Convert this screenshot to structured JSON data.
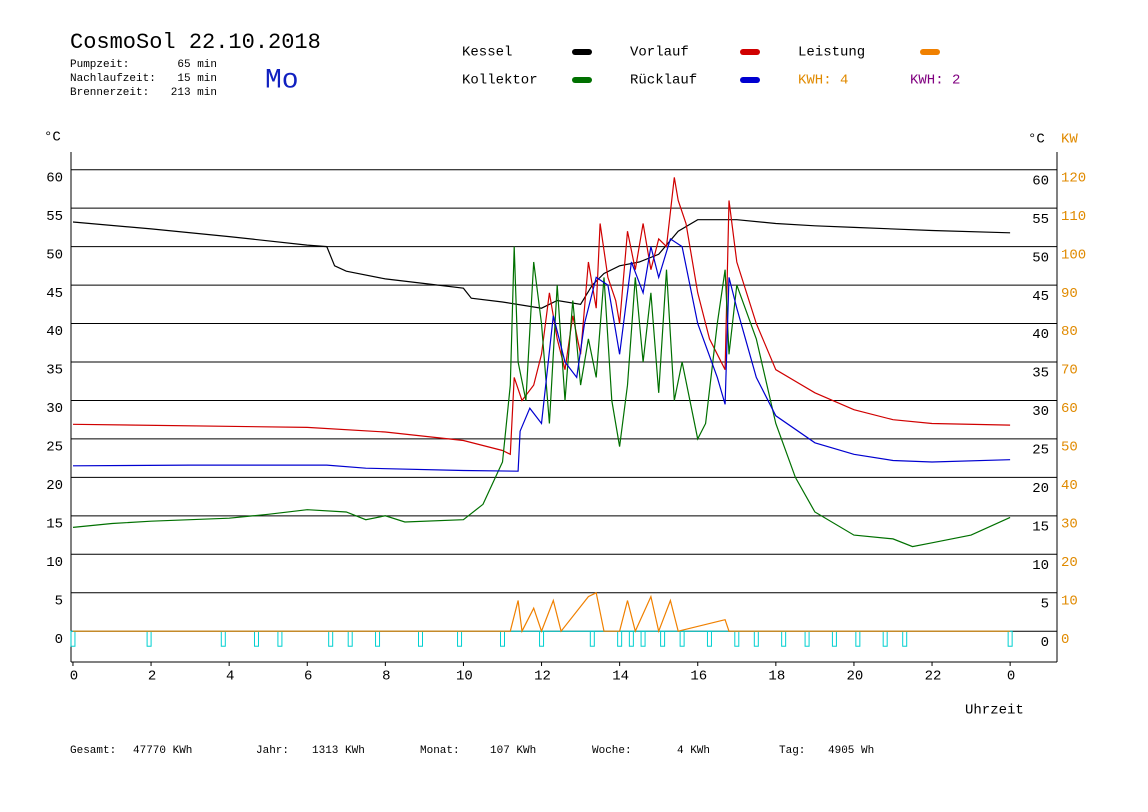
{
  "header": {
    "title": "CosmoSol 22.10.2018",
    "day": "Mo",
    "stats": [
      {
        "label": "Pumpzeit:",
        "value": "65 min"
      },
      {
        "label": "Nachlaufzeit:",
        "value": "15 min"
      },
      {
        "label": "Brennerzeit:",
        "value": "213 min"
      }
    ]
  },
  "chart_data": {
    "type": "line",
    "y_label": "°C",
    "y2_label_left": "°C",
    "y2_label": "KW",
    "x_label": "Uhrzeit",
    "xlim": [
      -0.05,
      25.2
    ],
    "xticks": [
      0,
      2,
      4,
      6,
      8,
      10,
      12,
      14,
      16,
      18,
      20,
      22,
      {
        "value": 24,
        "label": "0"
      }
    ],
    "ylim": [
      -4,
      62.3
    ],
    "yticks": [
      0,
      5,
      10,
      15,
      20,
      25,
      30,
      35,
      40,
      45,
      50,
      55,
      60
    ],
    "y2lim": [
      -8,
      124.6
    ],
    "y2ticks": [
      0,
      10,
      20,
      30,
      40,
      50,
      60,
      70,
      80,
      90,
      100,
      110,
      120
    ],
    "y2color": "#e08a00",
    "grid": true,
    "series": [
      {
        "name": "Kessel",
        "color": "#000000",
        "x": [
          0,
          2,
          4,
          6,
          6.5,
          6.7,
          7,
          8,
          9,
          10,
          10.2,
          11,
          12,
          12.4,
          13,
          13.3,
          13.6,
          14,
          14.5,
          15,
          15.5,
          16,
          17,
          18,
          19,
          20,
          22,
          24
        ],
        "values": [
          53.2,
          52.3,
          51.3,
          50.2,
          50,
          47.5,
          46.8,
          45.8,
          45.2,
          44.6,
          43.3,
          42.8,
          42,
          43,
          42.5,
          45,
          46.5,
          47.5,
          48,
          49,
          52,
          53.5,
          53.5,
          53,
          52.7,
          52.5,
          52.1,
          51.8
        ]
      },
      {
        "name": "Kollektor",
        "color": "#007000",
        "x": [
          0,
          1,
          2,
          4,
          5,
          6,
          7,
          7.5,
          8,
          8.5,
          10,
          10.5,
          11,
          11.2,
          11.3,
          11.4,
          11.6,
          11.8,
          12,
          12.2,
          12.4,
          12.6,
          12.8,
          13,
          13.2,
          13.4,
          13.6,
          13.8,
          14,
          14.2,
          14.4,
          14.6,
          14.8,
          15,
          15.2,
          15.4,
          15.6,
          16,
          16.2,
          16.5,
          16.7,
          16.8,
          17,
          17.5,
          18,
          18.5,
          19,
          20,
          21,
          21.5,
          22,
          23,
          24
        ],
        "values": [
          13.5,
          14,
          14.3,
          14.7,
          15.2,
          15.8,
          15.5,
          14.5,
          15,
          14.2,
          14.5,
          16.5,
          22,
          32,
          50,
          35,
          30,
          48,
          40,
          27,
          45,
          30,
          43,
          32,
          38,
          33,
          46,
          30,
          24,
          32,
          46,
          35,
          44,
          31,
          47,
          30,
          35,
          25,
          27,
          40,
          47,
          36,
          45,
          38,
          27,
          20,
          15.5,
          12.5,
          12,
          11,
          11.5,
          12.5,
          14.8
        ]
      },
      {
        "name": "Vorlauf",
        "color": "#d00000",
        "x": [
          0,
          6,
          8,
          10,
          11,
          11.2,
          11.3,
          11.5,
          11.8,
          12,
          12.2,
          12.4,
          12.6,
          12.8,
          13,
          13.2,
          13.4,
          13.5,
          13.7,
          13.9,
          14,
          14.2,
          14.4,
          14.6,
          14.8,
          15,
          15.2,
          15.4,
          15.5,
          15.7,
          16,
          16.3,
          16.7,
          16.8,
          17,
          17.5,
          18,
          19,
          20,
          21,
          22,
          24
        ],
        "values": [
          26.9,
          26.5,
          25.9,
          24.8,
          23.5,
          23,
          33,
          30,
          32,
          36,
          44,
          38,
          34,
          41,
          36,
          48,
          42,
          53,
          46,
          43,
          40,
          52,
          47,
          53,
          47,
          51,
          50,
          59,
          56,
          53,
          44,
          38,
          34,
          56,
          48,
          40,
          34,
          31,
          28.8,
          27.5,
          27,
          26.8
        ]
      },
      {
        "name": "Rücklauf",
        "color": "#0000d0",
        "x": [
          0,
          3,
          6.5,
          7.5,
          10,
          11.4,
          11.45,
          11.7,
          12,
          12.3,
          12.6,
          12.9,
          13.1,
          13.4,
          13.7,
          14,
          14.3,
          14.6,
          14.8,
          15,
          15.3,
          15.6,
          16,
          16.5,
          16.7,
          16.8,
          17,
          17.5,
          18,
          19,
          20,
          21,
          22,
          24
        ],
        "values": [
          21.5,
          21.6,
          21.6,
          21.2,
          20.9,
          20.8,
          26,
          29,
          27,
          41,
          35,
          33,
          40,
          46,
          45,
          36,
          48,
          44,
          50,
          46,
          51,
          50,
          40,
          33,
          29.5,
          46,
          42,
          33,
          28,
          24.5,
          23,
          22.2,
          22,
          22.3
        ]
      },
      {
        "name": "Leistung",
        "color": "#f08000",
        "axis": "y2",
        "x": [
          0,
          11.2,
          11.4,
          11.5,
          11.8,
          12,
          12.3,
          12.5,
          13.2,
          13.4,
          13.6,
          14,
          14.2,
          14.4,
          14.8,
          15,
          15.3,
          15.5,
          16.7,
          16.8,
          24
        ],
        "values": [
          0,
          0,
          8,
          0,
          6,
          0,
          8,
          0,
          9,
          10,
          0,
          0,
          8,
          0,
          9,
          0,
          8,
          0,
          3,
          0,
          0
        ]
      }
    ],
    "kwh_labels": [
      {
        "text": "KWH: 4",
        "color": "#e08a00"
      },
      {
        "text": "KWH: 2",
        "color": "#800080"
      }
    ],
    "pump_on": [
      0,
      1.95,
      3.85,
      4.7,
      5.3,
      6.6,
      7.1,
      7.8,
      8.9,
      9.9,
      11,
      12,
      13.3,
      14,
      14.3,
      14.6,
      15.1,
      15.6,
      16.3,
      17,
      17.5,
      18.2,
      18.8,
      19.5,
      20.1,
      20.8,
      21.3,
      24
    ],
    "pump_color": "#00d0d0"
  },
  "footer": [
    {
      "label": "Gesamt:",
      "value": "47770 KWh"
    },
    {
      "label": "Jahr:",
      "value": "1313 KWh"
    },
    {
      "label": "Monat:",
      "value": "107 KWh"
    },
    {
      "label": "Woche:",
      "value": "4 KWh"
    },
    {
      "label": "Tag:",
      "value": "4905 Wh"
    }
  ]
}
